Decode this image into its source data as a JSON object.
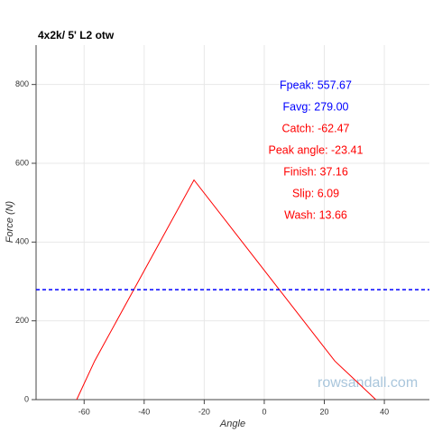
{
  "chart_data": {
    "type": "line",
    "title": "4x2k/ 5' L2 otw",
    "x_label": "Angle",
    "y_label": "Force (N)",
    "x": [
      -62.47,
      -56.5,
      -23.41,
      23.5,
      37.16
    ],
    "series": [
      {
        "name": "Force",
        "color": "#ff0000",
        "values": [
          0,
          98,
          557.67,
          98,
          0
        ]
      }
    ],
    "hline": {
      "value": 279,
      "color": "#0000ff",
      "dash": true
    },
    "xlim": [
      -76,
      55
    ],
    "ylim": [
      0,
      900
    ],
    "xticks": [
      -60,
      -40,
      -20,
      0,
      20,
      40
    ],
    "yticks": [
      0,
      200,
      400,
      600,
      800
    ],
    "grid": true,
    "annotations": [
      {
        "text": "Fpeak: 557.67",
        "color": "#0000ff"
      },
      {
        "text": "Favg: 279.00",
        "color": "#0000ff"
      },
      {
        "text": "Catch: -62.47",
        "color": "#ff0000"
      },
      {
        "text": "Peak angle: -23.41",
        "color": "#ff0000"
      },
      {
        "text": "Finish: 37.16",
        "color": "#ff0000"
      },
      {
        "text": "Slip: 6.09",
        "color": "#ff0000"
      },
      {
        "text": "Wash: 13.66",
        "color": "#ff0000"
      }
    ],
    "watermark": "rowsandall.com"
  }
}
